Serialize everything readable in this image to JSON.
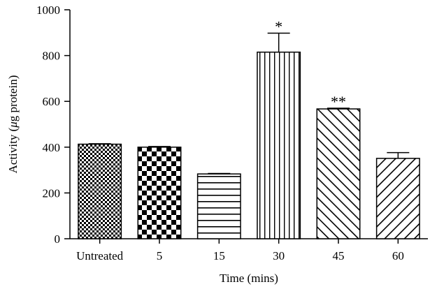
{
  "chart_data": {
    "type": "bar",
    "xlabel": "Time (mins)",
    "ylabel_prefix": "Activity (",
    "ylabel_unit_symbol": "μ",
    "ylabel_suffix": "g protein)",
    "ylim": [
      0,
      1000
    ],
    "yticks": [
      0,
      200,
      400,
      600,
      800,
      1000
    ],
    "grid": false,
    "categories": [
      "Untreated",
      "5",
      "15",
      "30",
      "45",
      "60"
    ],
    "values": [
      413,
      400,
      283,
      815,
      567,
      351
    ],
    "errors": [
      2,
      3,
      2,
      83,
      3,
      25
    ],
    "patterns": [
      "fine-checker",
      "coarse-checker",
      "horizontal-lines",
      "vertical-lines",
      "diagonal-back",
      "diagonal-forward"
    ],
    "annotations": [
      "",
      "",
      "",
      "*",
      "**",
      ""
    ],
    "colors": {
      "bar_stroke": "#000000",
      "fill_ink": "#000000",
      "background": "#ffffff"
    }
  }
}
